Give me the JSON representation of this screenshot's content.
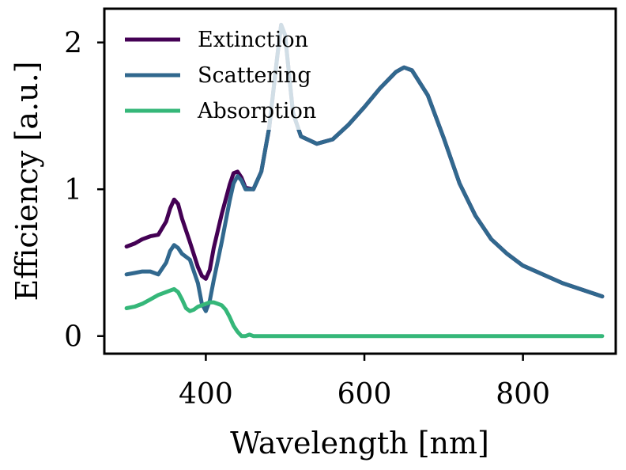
{
  "chart_data": {
    "type": "line",
    "xlabel": "Wavelength [nm]",
    "ylabel": "Efficiency [a.u.]",
    "xlim": [
      272,
      917
    ],
    "ylim": [
      -0.12,
      2.23
    ],
    "xticks": [
      {
        "value": 400,
        "label": "400"
      },
      {
        "value": 600,
        "label": "600"
      },
      {
        "value": 800,
        "label": "800"
      }
    ],
    "yticks": [
      {
        "value": 0,
        "label": "0"
      },
      {
        "value": 1,
        "label": "1"
      },
      {
        "value": 2,
        "label": "2"
      }
    ],
    "grid": false,
    "legend_position": "top-left",
    "series": [
      {
        "name": "Extinction",
        "color": "#440154",
        "x": [
          300,
          310,
          320,
          330,
          340,
          350,
          355,
          360,
          365,
          370,
          380,
          390,
          395,
          400,
          405,
          410,
          420,
          430,
          435,
          440,
          445,
          450,
          460,
          470,
          480,
          490,
          495,
          500,
          510,
          520,
          540,
          560,
          580,
          600,
          620,
          640,
          650,
          660,
          680,
          700,
          720,
          740,
          760,
          780,
          800,
          850,
          900
        ],
        "values": [
          0.61,
          0.63,
          0.66,
          0.68,
          0.69,
          0.78,
          0.87,
          0.93,
          0.9,
          0.8,
          0.64,
          0.47,
          0.41,
          0.39,
          0.45,
          0.6,
          0.83,
          1.03,
          1.11,
          1.12,
          1.08,
          1.01,
          1.0,
          1.12,
          1.42,
          1.9,
          2.12,
          2.05,
          1.52,
          1.36,
          1.31,
          1.34,
          1.44,
          1.56,
          1.69,
          1.8,
          1.83,
          1.81,
          1.64,
          1.35,
          1.04,
          0.82,
          0.66,
          0.56,
          0.48,
          0.36,
          0.27
        ]
      },
      {
        "name": "Scattering",
        "color": "#31688e",
        "x": [
          300,
          310,
          320,
          330,
          340,
          350,
          355,
          360,
          365,
          370,
          380,
          390,
          395,
          400,
          405,
          410,
          420,
          430,
          435,
          440,
          445,
          450,
          460,
          470,
          480,
          490,
          495,
          500,
          510,
          520,
          540,
          560,
          580,
          600,
          620,
          640,
          650,
          660,
          680,
          700,
          720,
          740,
          760,
          780,
          800,
          850,
          900
        ],
        "values": [
          0.42,
          0.43,
          0.44,
          0.44,
          0.42,
          0.5,
          0.58,
          0.62,
          0.6,
          0.56,
          0.52,
          0.36,
          0.22,
          0.17,
          0.24,
          0.38,
          0.64,
          0.92,
          1.04,
          1.09,
          1.06,
          1.0,
          1.0,
          1.12,
          1.42,
          1.9,
          2.12,
          2.05,
          1.52,
          1.36,
          1.31,
          1.34,
          1.44,
          1.56,
          1.69,
          1.8,
          1.83,
          1.81,
          1.64,
          1.35,
          1.04,
          0.82,
          0.66,
          0.56,
          0.48,
          0.36,
          0.27
        ]
      },
      {
        "name": "Absorption",
        "color": "#35b779",
        "x": [
          300,
          310,
          320,
          330,
          340,
          350,
          355,
          360,
          365,
          370,
          375,
          380,
          385,
          390,
          395,
          400,
          405,
          410,
          415,
          420,
          425,
          430,
          435,
          440,
          445,
          450,
          455,
          460,
          480,
          500,
          600,
          700,
          800,
          900
        ],
        "values": [
          0.19,
          0.2,
          0.22,
          0.25,
          0.28,
          0.3,
          0.31,
          0.32,
          0.3,
          0.25,
          0.19,
          0.17,
          0.18,
          0.2,
          0.21,
          0.22,
          0.23,
          0.23,
          0.22,
          0.21,
          0.18,
          0.13,
          0.07,
          0.03,
          0.0,
          0.0,
          0.01,
          0.0,
          0.0,
          0.0,
          0.0,
          0.0,
          0.0,
          0.0
        ]
      }
    ]
  }
}
